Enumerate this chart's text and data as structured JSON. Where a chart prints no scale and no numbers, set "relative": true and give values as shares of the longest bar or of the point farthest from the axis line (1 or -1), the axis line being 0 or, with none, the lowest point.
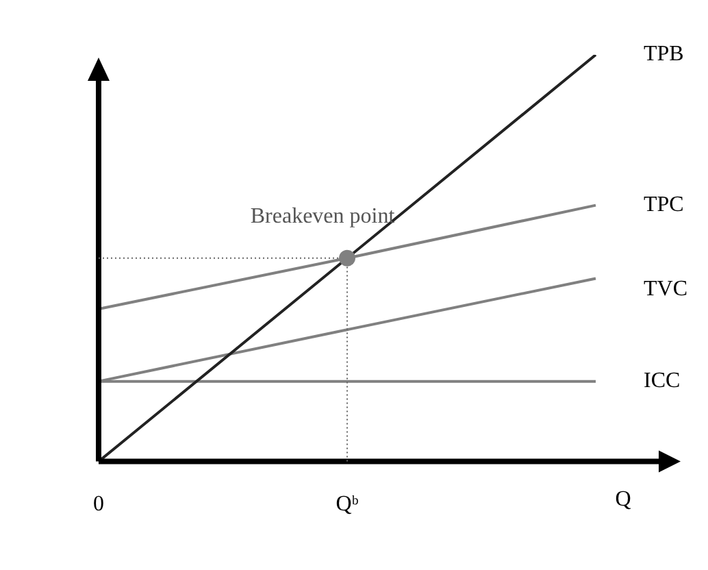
{
  "chart_data": {
    "type": "line",
    "relative": true,
    "categories": [
      "0",
      "Qᵇ",
      null
    ],
    "xlabel": "Q",
    "tick_labels": "x",
    "grid": false,
    "legend": false,
    "marker": "none",
    "line_style": "solid",
    "series": [
      {
        "name": "TPB",
        "color": "#222222",
        "values": [
          0,
          0.5,
          1
        ]
      },
      {
        "name": "TPC",
        "color": "#808080",
        "values": [
          0.375,
          0.5,
          0.63
        ]
      },
      {
        "name": "TVC",
        "color": "#808080",
        "values": [
          0.197,
          0.324,
          0.45
        ]
      },
      {
        "name": "ICC",
        "color": "#808080",
        "values": [
          0.197,
          0.197,
          0.197
        ]
      }
    ],
    "ref_lines": [
      {
        "axis": "y",
        "value": 0.5,
        "line_style": "dotted",
        "color": "#666666"
      },
      {
        "axis": "x",
        "value": "Qᵇ",
        "line_style": "dotted",
        "color": "#666666"
      }
    ],
    "annotations": [
      {
        "text": "Breakeven point",
        "x": "Qᵇ",
        "y": 0.5
      }
    ]
  }
}
